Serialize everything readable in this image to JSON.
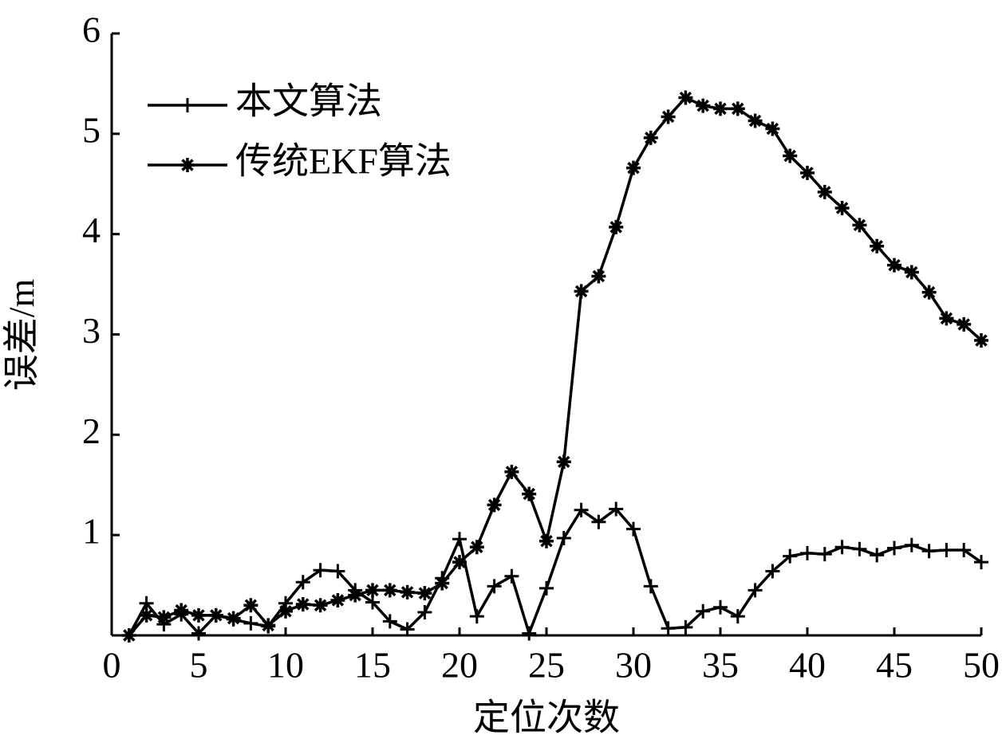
{
  "chart_data": {
    "type": "line",
    "xlabel": "定位次数",
    "ylabel": "误差/m",
    "x": [
      1,
      2,
      3,
      4,
      5,
      6,
      7,
      8,
      9,
      10,
      11,
      12,
      13,
      14,
      15,
      16,
      17,
      18,
      19,
      20,
      21,
      22,
      23,
      24,
      25,
      26,
      27,
      28,
      29,
      30,
      31,
      32,
      33,
      34,
      35,
      36,
      37,
      38,
      39,
      40,
      41,
      42,
      43,
      44,
      45,
      46,
      47,
      48,
      49,
      50
    ],
    "series": [
      {
        "name": "本文算法",
        "color": "#000000",
        "marker": "plus",
        "values": [
          0.0,
          0.32,
          0.11,
          0.21,
          0.02,
          0.2,
          0.16,
          0.12,
          0.09,
          0.32,
          0.53,
          0.65,
          0.64,
          0.45,
          0.33,
          0.14,
          0.06,
          0.23,
          0.57,
          0.96,
          0.19,
          0.49,
          0.59,
          0.02,
          0.47,
          0.97,
          1.25,
          1.13,
          1.26,
          1.06,
          0.49,
          0.07,
          0.08,
          0.24,
          0.28,
          0.19,
          0.45,
          0.64,
          0.79,
          0.82,
          0.81,
          0.88,
          0.86,
          0.8,
          0.87,
          0.9,
          0.84,
          0.85,
          0.85,
          0.73
        ]
      },
      {
        "name": "传统EKF算法",
        "color": "#000000",
        "marker": "star",
        "values": [
          0.0,
          0.2,
          0.18,
          0.25,
          0.2,
          0.2,
          0.17,
          0.3,
          0.1,
          0.24,
          0.31,
          0.3,
          0.35,
          0.4,
          0.45,
          0.45,
          0.43,
          0.42,
          0.52,
          0.73,
          0.88,
          1.3,
          1.63,
          1.41,
          0.94,
          1.73,
          3.43,
          3.58,
          4.07,
          4.66,
          4.96,
          5.17,
          5.36,
          5.28,
          5.25,
          5.25,
          5.13,
          5.05,
          4.78,
          4.61,
          4.42,
          4.26,
          4.09,
          3.88,
          3.69,
          3.62,
          3.42,
          3.16,
          3.1,
          2.94
        ]
      }
    ],
    "xlim": [
      0,
      50
    ],
    "xticks": [
      0,
      5,
      10,
      15,
      20,
      25,
      30,
      35,
      40,
      45,
      50
    ],
    "ylim": [
      0,
      6
    ],
    "yticks": [
      1,
      2,
      3,
      4,
      5,
      6
    ],
    "grid": false,
    "legend": "upper left"
  }
}
